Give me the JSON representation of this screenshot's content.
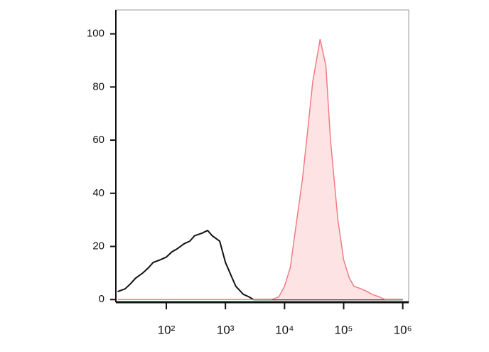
{
  "chart_data": {
    "type": "histogram-overlay",
    "x": [
      15,
      20,
      25,
      30,
      40,
      50,
      60,
      80,
      100,
      125,
      150,
      200,
      250,
      300,
      400,
      500,
      600,
      800,
      1000,
      1250,
      1500,
      2000,
      2500,
      3000,
      4000,
      5000,
      6000,
      8000,
      10000,
      12500,
      15000,
      20000,
      25000,
      30000,
      40000,
      50000,
      60000,
      80000,
      100000,
      125000,
      150000,
      200000,
      250000,
      300000,
      400000,
      500000,
      600000,
      800000,
      1000000
    ],
    "series": [
      {
        "color": "#111111",
        "fill": null,
        "values": [
          3,
          4,
          6,
          8,
          10,
          12,
          14,
          15,
          16,
          18,
          19,
          21,
          22,
          24,
          25,
          26,
          24,
          22,
          14,
          9,
          5,
          2,
          1,
          0,
          0,
          0,
          0,
          0,
          0,
          0,
          0,
          0,
          0,
          0,
          0,
          0,
          0,
          0,
          0,
          0,
          0,
          0,
          0,
          0,
          0,
          0,
          0,
          0,
          0
        ]
      },
      {
        "color": "#f07c84",
        "fill": "#fde3e4",
        "values": [
          0,
          0,
          0,
          0,
          0,
          0,
          0,
          0,
          0,
          0,
          0,
          0,
          0,
          0,
          0,
          0,
          0,
          0,
          0,
          0,
          0,
          0,
          0,
          0,
          0,
          0,
          0,
          1,
          5,
          12,
          25,
          45,
          65,
          82,
          98,
          88,
          60,
          30,
          15,
          8,
          5,
          4,
          3,
          2,
          1,
          0,
          0,
          0,
          0
        ]
      }
    ],
    "xscale": "log",
    "xlim": [
      14,
      1260000
    ],
    "xticks": [
      {
        "value": 100,
        "label": "10²"
      },
      {
        "value": 1000,
        "label": "10³"
      },
      {
        "value": 10000,
        "label": "10⁴"
      },
      {
        "value": 100000,
        "label": "10⁵"
      },
      {
        "value": 1000000,
        "label": "10⁶"
      }
    ],
    "ylim": [
      -1,
      109
    ],
    "yticks": [
      0,
      20,
      40,
      60,
      80,
      100
    ]
  }
}
